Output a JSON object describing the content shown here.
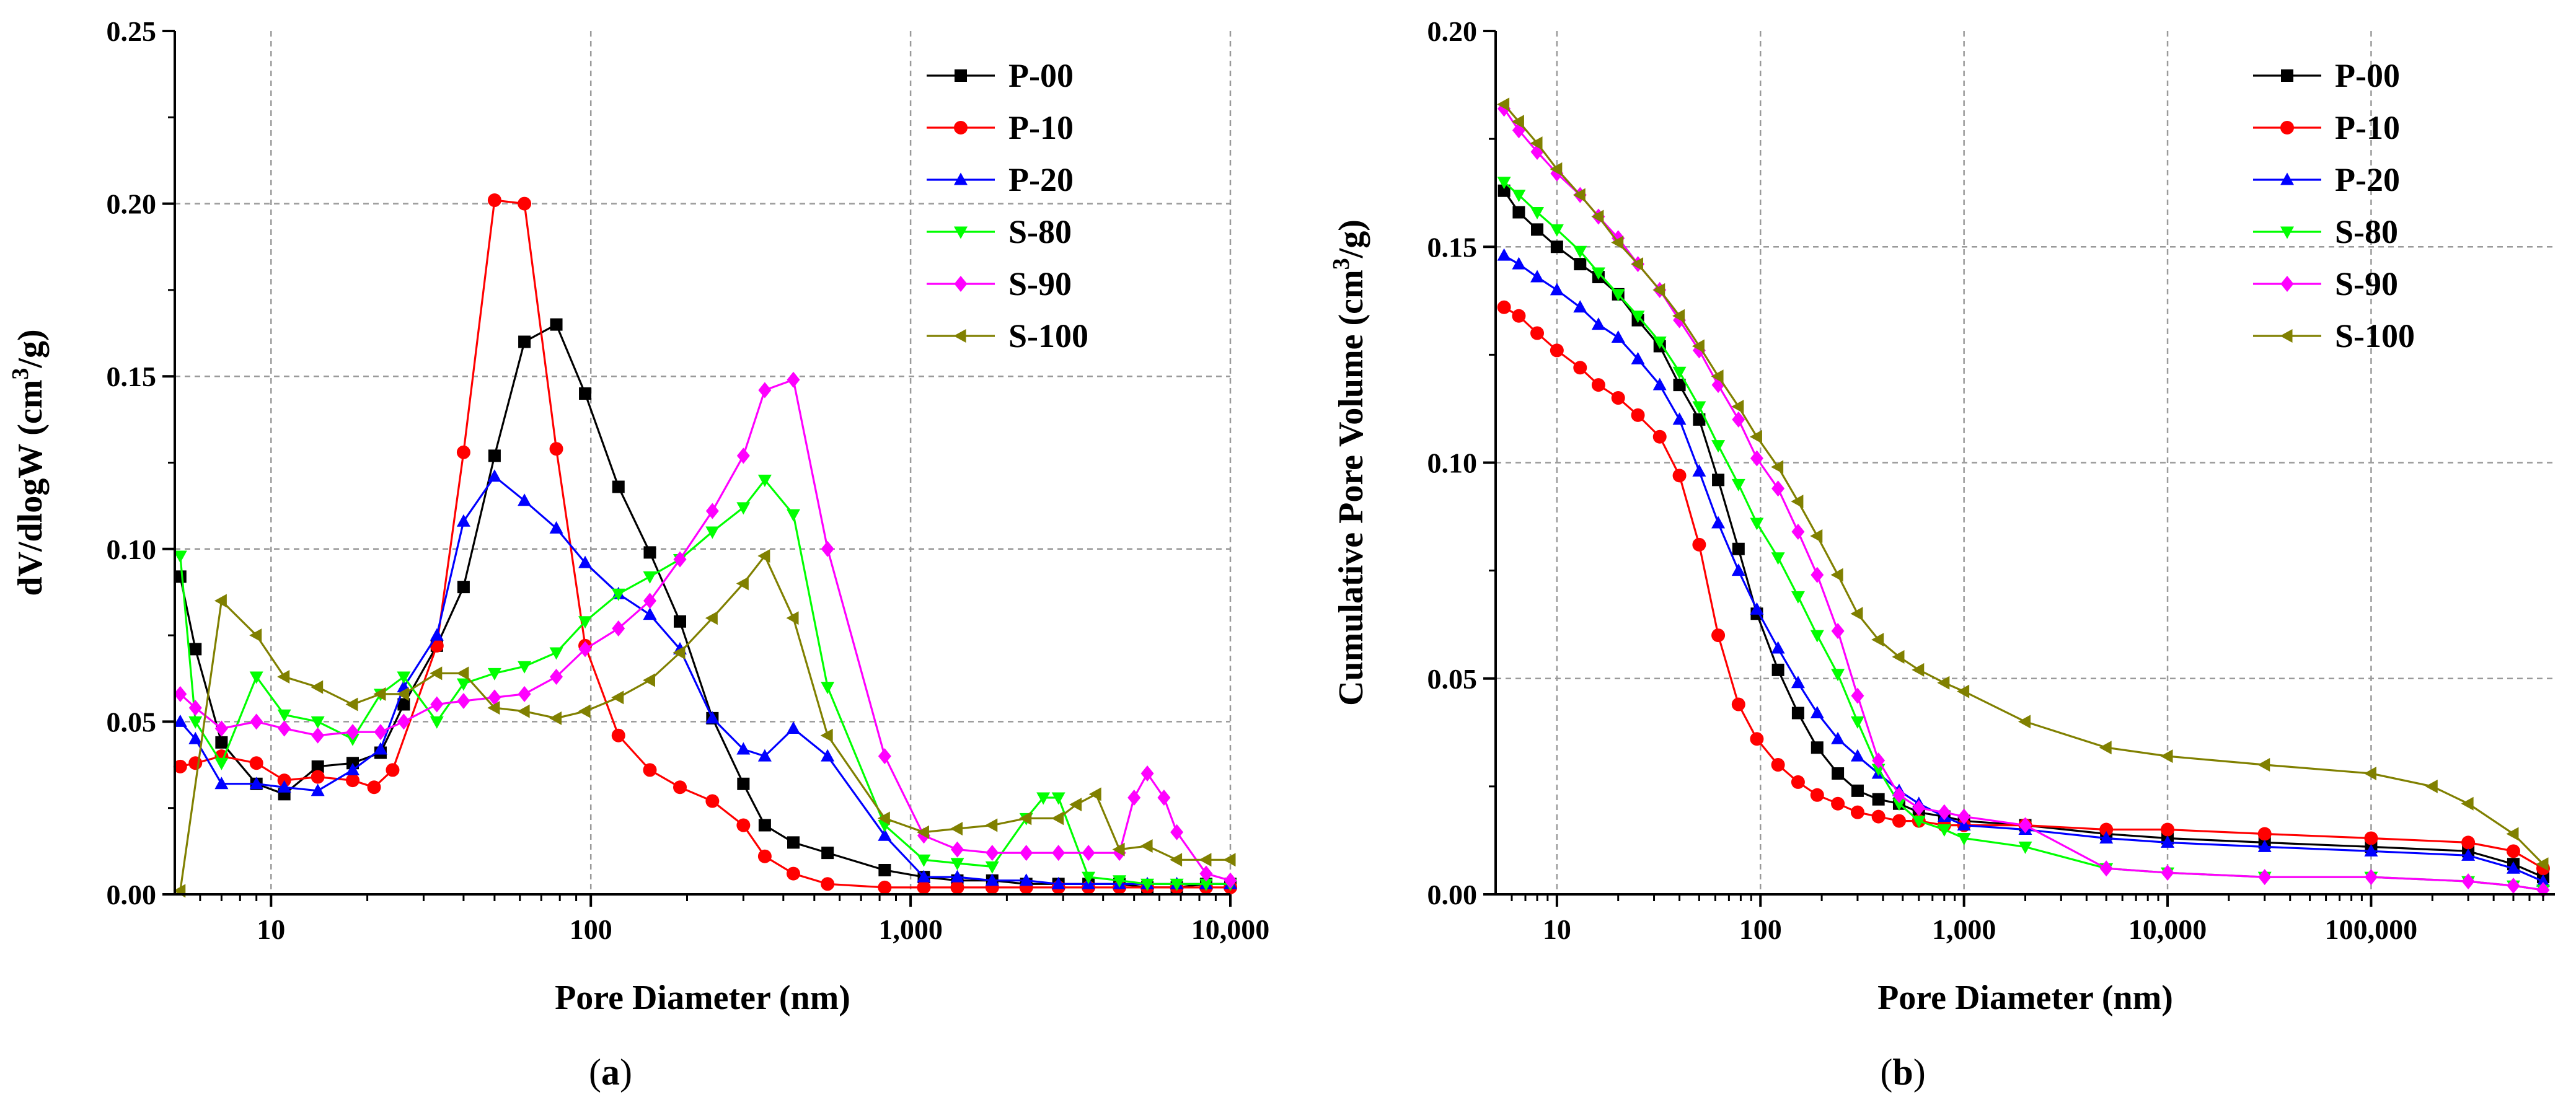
{
  "chart_data": [
    {
      "type": "line",
      "panel": "a",
      "caption_open": "(",
      "caption_letter": "a",
      "caption_close": ")",
      "title": "",
      "xlabel": "Pore Diameter (nm)",
      "ylabel_main": "dV/dlogW (cm",
      "ylabel_sup": "3",
      "ylabel_tail": "/g)",
      "xscale": "log",
      "xlim": [
        5,
        10000
      ],
      "ylim": [
        0,
        0.25
      ],
      "grid": true,
      "legend_position": "top-right",
      "xticks": [
        {
          "value": 10,
          "label": "10"
        },
        {
          "value": 100,
          "label": "100"
        },
        {
          "value": 1000,
          "label": "1,000"
        },
        {
          "value": 10000,
          "label": "10,000"
        }
      ],
      "yticks": [
        {
          "value": 0,
          "label": "0.00"
        },
        {
          "value": 0.05,
          "label": "0.05"
        },
        {
          "value": 0.1,
          "label": "0.10"
        },
        {
          "value": 0.15,
          "label": "0.15"
        },
        {
          "value": 0.2,
          "label": "0.20"
        },
        {
          "value": 0.25,
          "label": "0.25"
        }
      ],
      "series": [
        {
          "name": "P-00",
          "color": "#000000",
          "marker": "square",
          "x": [
            5.2,
            5.8,
            7,
            9,
            11,
            14,
            18,
            22,
            26,
            33,
            40,
            50,
            62,
            78,
            96,
            122,
            153,
            190,
            240,
            300,
            350,
            430,
            550,
            830,
            1100,
            1400,
            1800,
            2300,
            2900,
            3600,
            4500,
            5500,
            6800,
            8400,
            10000
          ],
          "y": [
            0.092,
            0.071,
            0.044,
            0.032,
            0.029,
            0.037,
            0.038,
            0.041,
            0.055,
            0.072,
            0.089,
            0.127,
            0.16,
            0.165,
            0.145,
            0.118,
            0.099,
            0.079,
            0.051,
            0.032,
            0.02,
            0.015,
            0.012,
            0.007,
            0.005,
            0.004,
            0.004,
            0.003,
            0.003,
            0.003,
            0.003,
            0.002,
            0.002,
            0.003,
            0.003
          ]
        },
        {
          "name": "P-10",
          "color": "#ff0000",
          "marker": "circle",
          "x": [
            5.2,
            5.8,
            7,
            9,
            11,
            14,
            18,
            21,
            24,
            33,
            40,
            50,
            62,
            78,
            96,
            122,
            153,
            190,
            240,
            300,
            350,
            430,
            550,
            830,
            1100,
            1400,
            1800,
            2300,
            2900,
            3600,
            4500,
            5500,
            6800,
            8400,
            10000
          ],
          "y": [
            0.037,
            0.038,
            0.04,
            0.038,
            0.033,
            0.034,
            0.033,
            0.031,
            0.036,
            0.072,
            0.128,
            0.201,
            0.2,
            0.129,
            0.072,
            0.046,
            0.036,
            0.031,
            0.027,
            0.02,
            0.011,
            0.006,
            0.003,
            0.002,
            0.002,
            0.002,
            0.002,
            0.002,
            0.002,
            0.002,
            0.002,
            0.002,
            0.002,
            0.002,
            0.002
          ]
        },
        {
          "name": "P-20",
          "color": "#0000ff",
          "marker": "triangle-up",
          "x": [
            5.2,
            5.8,
            7,
            9,
            11,
            14,
            18,
            22,
            26,
            33,
            40,
            50,
            62,
            78,
            96,
            122,
            153,
            190,
            240,
            300,
            350,
            430,
            550,
            830,
            1100,
            1400,
            1800,
            2300,
            2900,
            3600,
            4500,
            5500,
            6800,
            8400,
            10000
          ],
          "y": [
            0.05,
            0.045,
            0.032,
            0.032,
            0.031,
            0.03,
            0.036,
            0.042,
            0.06,
            0.075,
            0.108,
            0.121,
            0.114,
            0.106,
            0.096,
            0.087,
            0.081,
            0.071,
            0.051,
            0.042,
            0.04,
            0.048,
            0.04,
            0.017,
            0.005,
            0.005,
            0.004,
            0.004,
            0.003,
            0.003,
            0.003,
            0.003,
            0.003,
            0.003,
            0.003
          ]
        },
        {
          "name": "S-80",
          "color": "#00ff00",
          "marker": "triangle-down",
          "x": [
            5.2,
            5.8,
            7,
            9,
            11,
            14,
            18,
            22,
            26,
            33,
            40,
            50,
            62,
            78,
            96,
            122,
            153,
            190,
            240,
            300,
            350,
            430,
            550,
            830,
            1100,
            1400,
            1800,
            2300,
            2600,
            2900,
            3600,
            4500,
            5500,
            6800,
            8400,
            10000
          ],
          "y": [
            0.098,
            0.05,
            0.038,
            0.063,
            0.052,
            0.05,
            0.045,
            0.058,
            0.063,
            0.05,
            0.061,
            0.064,
            0.066,
            0.07,
            0.079,
            0.087,
            0.092,
            0.097,
            0.105,
            0.112,
            0.12,
            0.11,
            0.06,
            0.02,
            0.01,
            0.009,
            0.008,
            0.022,
            0.028,
            0.028,
            0.005,
            0.004,
            0.003,
            0.003,
            0.003,
            0.003
          ]
        },
        {
          "name": "S-90",
          "color": "#ff00ff",
          "marker": "diamond",
          "x": [
            5.2,
            5.8,
            7,
            9,
            11,
            14,
            18,
            22,
            26,
            33,
            40,
            50,
            62,
            78,
            96,
            122,
            153,
            190,
            240,
            300,
            350,
            430,
            550,
            830,
            1100,
            1400,
            1800,
            2300,
            2900,
            3600,
            4500,
            5000,
            5500,
            6200,
            6800,
            8400,
            10000
          ],
          "y": [
            0.058,
            0.054,
            0.048,
            0.05,
            0.048,
            0.046,
            0.047,
            0.047,
            0.05,
            0.055,
            0.056,
            0.057,
            0.058,
            0.063,
            0.071,
            0.077,
            0.085,
            0.097,
            0.111,
            0.127,
            0.146,
            0.149,
            0.1,
            0.04,
            0.017,
            0.013,
            0.012,
            0.012,
            0.012,
            0.012,
            0.012,
            0.028,
            0.035,
            0.028,
            0.018,
            0.006,
            0.004
          ]
        },
        {
          "name": "S-100",
          "color": "#808000",
          "marker": "triangle-left",
          "x": [
            5.2,
            7,
            9,
            11,
            14,
            18,
            22,
            26,
            33,
            40,
            50,
            62,
            78,
            96,
            122,
            153,
            190,
            240,
            300,
            350,
            430,
            550,
            830,
            1100,
            1400,
            1800,
            2300,
            2900,
            3300,
            3800,
            4500,
            5500,
            6800,
            8400,
            10000
          ],
          "y": [
            0.001,
            0.085,
            0.075,
            0.063,
            0.06,
            0.055,
            0.058,
            0.058,
            0.064,
            0.064,
            0.054,
            0.053,
            0.051,
            0.053,
            0.057,
            0.062,
            0.07,
            0.08,
            0.09,
            0.098,
            0.08,
            0.046,
            0.022,
            0.018,
            0.019,
            0.02,
            0.022,
            0.022,
            0.026,
            0.029,
            0.013,
            0.014,
            0.01,
            0.01,
            0.01
          ]
        }
      ]
    },
    {
      "type": "line",
      "panel": "b",
      "caption_open": "(",
      "caption_letter": "b",
      "caption_close": ")",
      "title": "",
      "xlabel": "Pore Diameter (nm)",
      "ylabel_main": "Cumulative Pore Volume (cm",
      "ylabel_sup": "3",
      "ylabel_tail": "/g)",
      "xscale": "log",
      "xlim": [
        5,
        800000
      ],
      "ylim": [
        0,
        0.2
      ],
      "grid": true,
      "legend_position": "top-right",
      "xticks": [
        {
          "value": 10,
          "label": "10"
        },
        {
          "value": 100,
          "label": "100"
        },
        {
          "value": 1000,
          "label": "1,000"
        },
        {
          "value": 10000,
          "label": "10,000"
        },
        {
          "value": 100000,
          "label": "100,000"
        }
      ],
      "yticks": [
        {
          "value": 0,
          "label": "0.00"
        },
        {
          "value": 0.05,
          "label": "0.05"
        },
        {
          "value": 0.1,
          "label": "0.10"
        },
        {
          "value": 0.15,
          "label": "0.15"
        },
        {
          "value": 0.2,
          "label": "0.20"
        }
      ],
      "series": [
        {
          "name": "P-00",
          "color": "#000000",
          "marker": "square",
          "x": [
            5.5,
            6.5,
            8,
            10,
            13,
            16,
            20,
            25,
            32,
            40,
            50,
            62,
            78,
            96,
            122,
            153,
            190,
            240,
            300,
            380,
            480,
            600,
            800,
            1000,
            2000,
            5000,
            10000,
            30000,
            100000,
            300000,
            500000,
            700000
          ],
          "y": [
            0.163,
            0.158,
            0.154,
            0.15,
            0.146,
            0.143,
            0.139,
            0.133,
            0.127,
            0.118,
            0.11,
            0.096,
            0.08,
            0.065,
            0.052,
            0.042,
            0.034,
            0.028,
            0.024,
            0.022,
            0.021,
            0.019,
            0.018,
            0.017,
            0.016,
            0.014,
            0.013,
            0.012,
            0.011,
            0.01,
            0.007,
            0.004
          ]
        },
        {
          "name": "P-10",
          "color": "#ff0000",
          "marker": "circle",
          "x": [
            5.5,
            6.5,
            8,
            10,
            13,
            16,
            20,
            25,
            32,
            40,
            50,
            62,
            78,
            96,
            122,
            153,
            190,
            240,
            300,
            380,
            480,
            600,
            800,
            1000,
            2000,
            5000,
            10000,
            30000,
            100000,
            300000,
            500000,
            700000
          ],
          "y": [
            0.136,
            0.134,
            0.13,
            0.126,
            0.122,
            0.118,
            0.115,
            0.111,
            0.106,
            0.097,
            0.081,
            0.06,
            0.044,
            0.036,
            0.03,
            0.026,
            0.023,
            0.021,
            0.019,
            0.018,
            0.017,
            0.017,
            0.016,
            0.016,
            0.016,
            0.015,
            0.015,
            0.014,
            0.013,
            0.012,
            0.01,
            0.006
          ]
        },
        {
          "name": "P-20",
          "color": "#0000ff",
          "marker": "triangle-up",
          "x": [
            5.5,
            6.5,
            8,
            10,
            13,
            16,
            20,
            25,
            32,
            40,
            50,
            62,
            78,
            96,
            122,
            153,
            190,
            240,
            300,
            380,
            480,
            600,
            800,
            1000,
            2000,
            5000,
            10000,
            30000,
            100000,
            300000,
            500000,
            700000
          ],
          "y": [
            0.148,
            0.146,
            0.143,
            0.14,
            0.136,
            0.132,
            0.129,
            0.124,
            0.118,
            0.11,
            0.098,
            0.086,
            0.075,
            0.066,
            0.057,
            0.049,
            0.042,
            0.036,
            0.032,
            0.028,
            0.024,
            0.021,
            0.018,
            0.016,
            0.015,
            0.013,
            0.012,
            0.011,
            0.01,
            0.009,
            0.006,
            0.003
          ]
        },
        {
          "name": "S-80",
          "color": "#00ff00",
          "marker": "triangle-down",
          "x": [
            5.5,
            6.5,
            8,
            10,
            13,
            16,
            20,
            25,
            32,
            40,
            50,
            62,
            78,
            96,
            122,
            153,
            190,
            240,
            300,
            380,
            480,
            600,
            800,
            1000,
            2000,
            5000,
            10000,
            30000,
            100000,
            300000,
            500000,
            700000
          ],
          "y": [
            0.165,
            0.162,
            0.158,
            0.154,
            0.149,
            0.144,
            0.139,
            0.134,
            0.128,
            0.121,
            0.113,
            0.104,
            0.095,
            0.086,
            0.078,
            0.069,
            0.06,
            0.051,
            0.04,
            0.029,
            0.021,
            0.017,
            0.015,
            0.013,
            0.011,
            0.006,
            0.005,
            0.004,
            0.004,
            0.003,
            0.002,
            0.001
          ]
        },
        {
          "name": "S-90",
          "color": "#ff00ff",
          "marker": "diamond",
          "x": [
            5.5,
            6.5,
            8,
            10,
            13,
            16,
            20,
            25,
            32,
            40,
            50,
            62,
            78,
            96,
            122,
            153,
            190,
            240,
            300,
            380,
            480,
            600,
            800,
            1000,
            2000,
            5000,
            10000,
            30000,
            100000,
            300000,
            500000,
            700000
          ],
          "y": [
            0.182,
            0.177,
            0.172,
            0.167,
            0.162,
            0.157,
            0.152,
            0.146,
            0.14,
            0.133,
            0.126,
            0.118,
            0.11,
            0.101,
            0.094,
            0.084,
            0.074,
            0.061,
            0.046,
            0.031,
            0.023,
            0.02,
            0.019,
            0.018,
            0.016,
            0.006,
            0.005,
            0.004,
            0.004,
            0.003,
            0.002,
            0.001
          ]
        },
        {
          "name": "S-100",
          "color": "#808000",
          "marker": "triangle-left",
          "x": [
            5.5,
            6.5,
            8,
            10,
            13,
            16,
            20,
            25,
            32,
            40,
            50,
            62,
            78,
            96,
            122,
            153,
            190,
            240,
            300,
            380,
            480,
            600,
            800,
            1000,
            2000,
            5000,
            10000,
            30000,
            100000,
            200000,
            300000,
            500000,
            700000
          ],
          "y": [
            0.183,
            0.179,
            0.174,
            0.168,
            0.162,
            0.157,
            0.151,
            0.146,
            0.14,
            0.134,
            0.127,
            0.12,
            0.113,
            0.106,
            0.099,
            0.091,
            0.083,
            0.074,
            0.065,
            0.059,
            0.055,
            0.052,
            0.049,
            0.047,
            0.04,
            0.034,
            0.032,
            0.03,
            0.028,
            0.025,
            0.021,
            0.014,
            0.007
          ]
        }
      ]
    }
  ]
}
